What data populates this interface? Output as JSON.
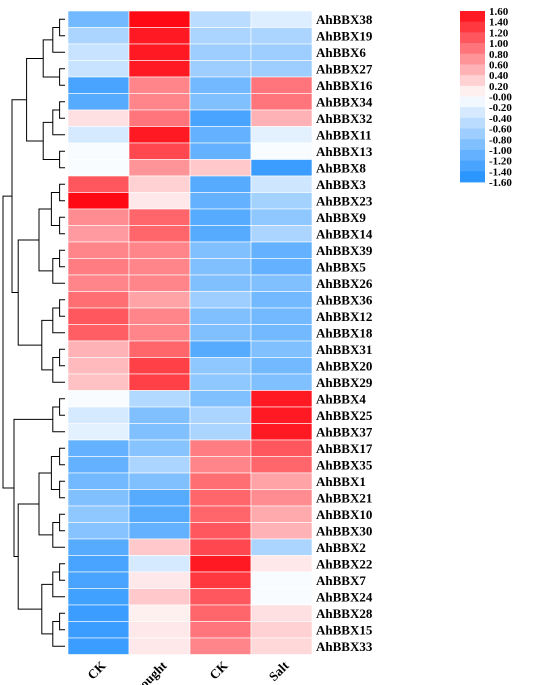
{
  "chart_data": {
    "type": "heatmap",
    "title": "",
    "columns": [
      "CK",
      "Drought",
      "CK",
      "Salt"
    ],
    "rows": [
      "AhBBX38",
      "AhBBX19",
      "AhBBX6",
      "AhBBX27",
      "AhBBX16",
      "AhBBX34",
      "AhBBX32",
      "AhBBX11",
      "AhBBX13",
      "AhBBX8",
      "AhBBX3",
      "AhBBX23",
      "AhBBX9",
      "AhBBX14",
      "AhBBX39",
      "AhBBX5",
      "AhBBX26",
      "AhBBX36",
      "AhBBX12",
      "AhBBX18",
      "AhBBX31",
      "AhBBX20",
      "AhBBX29",
      "AhBBX4",
      "AhBBX25",
      "AhBBX37",
      "AhBBX17",
      "AhBBX35",
      "AhBBX1",
      "AhBBX21",
      "AhBBX10",
      "AhBBX30",
      "AhBBX2",
      "AhBBX22",
      "AhBBX7",
      "AhBBX24",
      "AhBBX28",
      "AhBBX15",
      "AhBBX33"
    ],
    "values": [
      [
        -1.0,
        1.6,
        -0.5,
        -0.25
      ],
      [
        -0.6,
        1.5,
        -0.6,
        -0.6
      ],
      [
        -0.4,
        1.5,
        -0.7,
        -0.7
      ],
      [
        -0.4,
        1.5,
        -0.7,
        -0.7
      ],
      [
        -1.3,
        0.8,
        -1.0,
        0.9
      ],
      [
        -1.2,
        0.8,
        -0.9,
        0.9
      ],
      [
        0.2,
        0.9,
        -1.3,
        0.5
      ],
      [
        -0.3,
        1.5,
        -1.1,
        -0.2
      ],
      [
        -0.05,
        1.2,
        -1.1,
        -0.05
      ],
      [
        -0.05,
        0.7,
        0.35,
        -1.4
      ],
      [
        1.1,
        0.3,
        -1.2,
        -0.35
      ],
      [
        1.6,
        0.15,
        -1.1,
        -0.65
      ],
      [
        0.75,
        1.0,
        -1.2,
        -0.8
      ],
      [
        0.65,
        1.0,
        -1.2,
        -0.6
      ],
      [
        0.8,
        0.8,
        -0.9,
        -1.1
      ],
      [
        0.85,
        0.8,
        -0.9,
        -1.1
      ],
      [
        0.8,
        0.8,
        -0.9,
        -0.9
      ],
      [
        0.95,
        0.6,
        -0.7,
        -1.0
      ],
      [
        1.1,
        0.8,
        -0.9,
        -1.0
      ],
      [
        1.05,
        0.8,
        -0.9,
        -1.0
      ],
      [
        0.5,
        1.0,
        -1.2,
        -0.9
      ],
      [
        0.45,
        1.25,
        -0.8,
        -1.0
      ],
      [
        0.4,
        1.25,
        -0.8,
        -0.9
      ],
      [
        -0.05,
        -0.55,
        -0.9,
        1.5
      ],
      [
        -0.3,
        -0.9,
        -0.6,
        1.5
      ],
      [
        -0.2,
        -0.9,
        -0.6,
        1.5
      ],
      [
        -1.1,
        -0.85,
        0.85,
        1.1
      ],
      [
        -1.1,
        -0.6,
        0.8,
        1.0
      ],
      [
        -1.0,
        -0.9,
        0.95,
        0.6
      ],
      [
        -0.9,
        -1.2,
        1.0,
        0.75
      ],
      [
        -0.8,
        -1.2,
        1.0,
        0.55
      ],
      [
        -0.85,
        -1.1,
        1.1,
        0.5
      ],
      [
        -1.2,
        0.35,
        1.2,
        -0.6
      ],
      [
        -1.3,
        -0.3,
        1.5,
        0.15
      ],
      [
        -1.3,
        0.15,
        1.3,
        -0.05
      ],
      [
        -1.35,
        0.35,
        1.1,
        -0.05
      ],
      [
        -1.4,
        0.1,
        1.0,
        0.2
      ],
      [
        -1.4,
        0.15,
        0.9,
        0.3
      ],
      [
        -1.4,
        0.15,
        0.8,
        0.25
      ]
    ],
    "colorbar": {
      "range": [
        -1.6,
        1.6
      ],
      "ticks": [
        "1.60",
        "1.40",
        "1.20",
        "1.00",
        "0.80",
        "0.60",
        "0.40",
        "0.20",
        "-0.00",
        "-0.20",
        "-0.40",
        "-0.60",
        "-0.80",
        "-1.00",
        "-1.20",
        "-1.40",
        "-1.60"
      ],
      "placement": "top-right"
    },
    "colors": {
      "low": "#1E8FFF",
      "mid": "#FFFFFF",
      "high": "#FF0A14"
    },
    "dendrogram": "left",
    "grid": true
  }
}
